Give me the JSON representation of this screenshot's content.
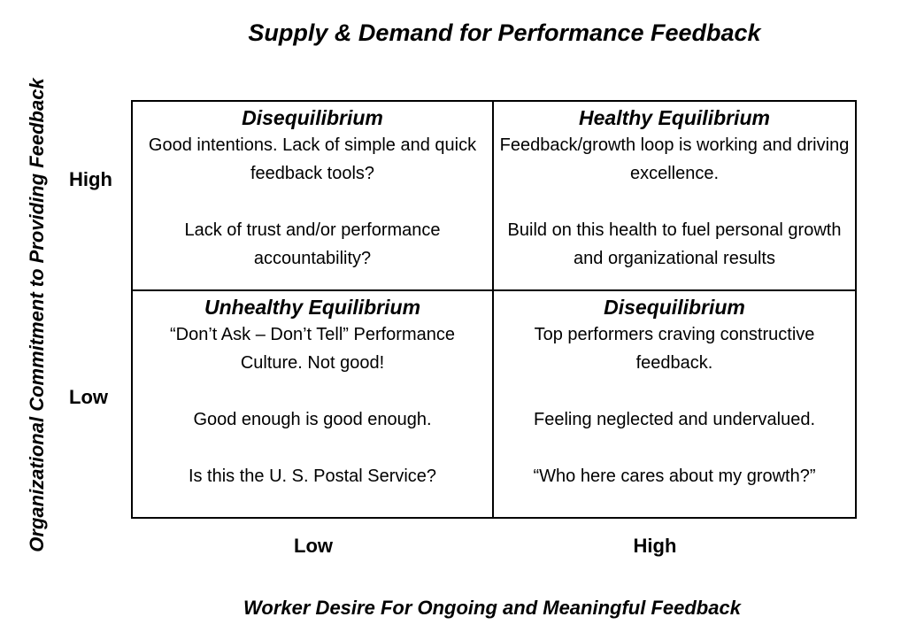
{
  "title": "Supply & Demand for Performance Feedback",
  "y_axis": {
    "title": "Organizational Commitment to Providing Feedback",
    "high": "High",
    "low": "Low"
  },
  "x_axis": {
    "title": "Worker Desire For Ongoing and Meaningful Feedback",
    "low": "Low",
    "high": "High"
  },
  "quadrants": {
    "top_left": {
      "heading": "Disequilibrium",
      "paragraphs": [
        "Good intentions.  Lack of simple and quick feedback tools?",
        "Lack of trust and/or performance accountability?"
      ]
    },
    "top_right": {
      "heading": "Healthy Equilibrium",
      "paragraphs": [
        "Feedback/growth loop is working and driving excellence.",
        "Build on this health to fuel personal growth and organizational results"
      ]
    },
    "bottom_left": {
      "heading": "Unhealthy Equilibrium",
      "paragraphs": [
        "“Don’t Ask – Don’t Tell” Performance Culture.  Not good!",
        "Good enough is good enough.",
        "Is this the U. S. Postal Service?"
      ]
    },
    "bottom_right": {
      "heading": "Disequilibrium",
      "paragraphs": [
        "Top performers craving constructive feedback.",
        "Feeling neglected and undervalued.",
        "“Who here cares about my growth?”"
      ]
    }
  }
}
